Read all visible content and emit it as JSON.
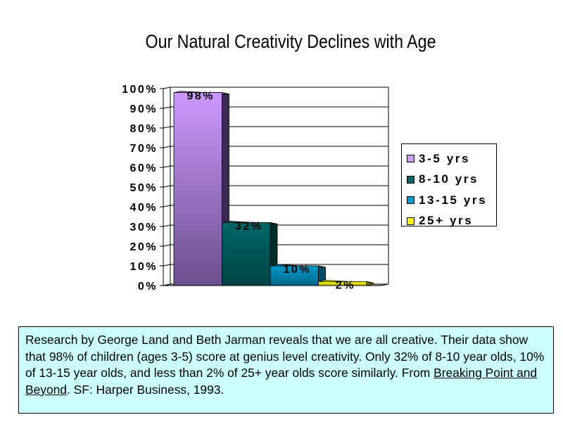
{
  "chart_data": {
    "type": "bar",
    "title": "Our Natural Creativity Declines with Age",
    "categories": [
      "3-5 yrs",
      "8-10 yrs",
      "13-15 yrs",
      "25+ yrs"
    ],
    "values": [
      98,
      32,
      10,
      2
    ],
    "data_labels": [
      "98%",
      "32%",
      "10%",
      "2%"
    ],
    "y_ticks": [
      "0%",
      "10%",
      "20%",
      "30%",
      "40%",
      "50%",
      "60%",
      "70%",
      "80%",
      "90%",
      "100%"
    ],
    "ylim": [
      0,
      100
    ],
    "grid": true,
    "legend_position": "right",
    "colors": [
      "#cc99ff",
      "#006666",
      "#0099cc",
      "#ffff00"
    ],
    "shade_colors": [
      "#6b4f8c",
      "#004444",
      "#006688",
      "#b3b300"
    ],
    "side_colors": [
      "#3d2a55",
      "#002e2e",
      "#004a66",
      "#7a7a00"
    ]
  },
  "note": {
    "text_before": "Research by George Land and Beth Jarman reveals that we are all creative.  Their data show that 98% of children (ages 3-5) score at genius level creativity.  Only 32% of 8-10 year olds, 10% of 13-15 year olds, and less than 2% of 25+ year olds score similarly. From ",
    "book_title": "Breaking Point and Beyond",
    "text_after": ".  SF:  Harper Business, 1993."
  }
}
